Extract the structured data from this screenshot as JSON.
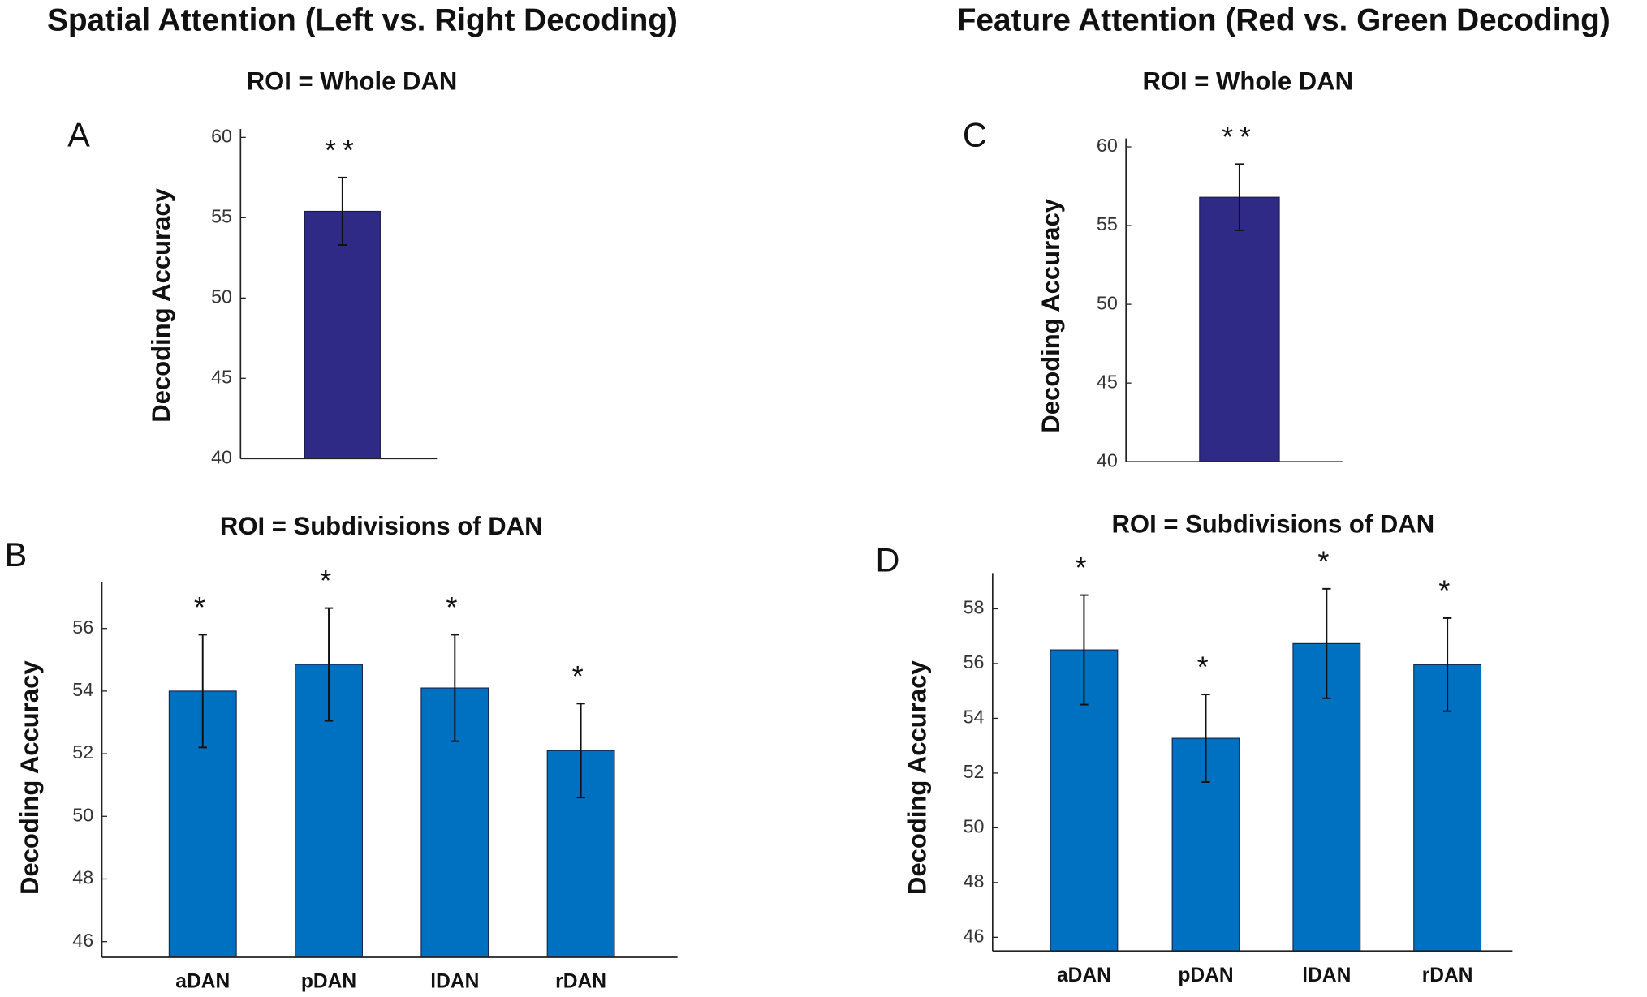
{
  "headings": [
    "Spatial Attention (Left vs. Right Decoding)",
    "Feature Attention (Red vs. Green Decoding)"
  ],
  "chart_data": [
    {
      "type": "bar",
      "panel_label": "A",
      "title": "ROI = Whole DAN",
      "y_label": "Decoding Accuracy",
      "categories": [
        null
      ],
      "values": [
        55.4
      ],
      "errors": [
        2.1
      ],
      "annotations": [
        "**"
      ],
      "color": "#2e2a86",
      "ylim": [
        40,
        60
      ],
      "yticks": [
        40,
        45,
        50,
        55,
        60
      ]
    },
    {
      "type": "bar",
      "panel_label": "B",
      "title": "ROI = Subdivisions of DAN",
      "y_label": "Decoding Accuracy",
      "categories": [
        "aDAN",
        "pDAN",
        "lDAN",
        "rDAN"
      ],
      "values": [
        54.0,
        54.85,
        54.1,
        52.1
      ],
      "errors": [
        1.8,
        1.8,
        1.7,
        1.5
      ],
      "annotations": [
        "*",
        "*",
        "*",
        "*"
      ],
      "color": "#0070c0",
      "ylim": [
        45.5,
        57.2
      ],
      "yticks": [
        46,
        48,
        50,
        52,
        54,
        56
      ]
    },
    {
      "type": "bar",
      "panel_label": "C",
      "title": "ROI = Whole DAN",
      "y_label": "Decoding Accuracy",
      "categories": [
        null
      ],
      "values": [
        56.8
      ],
      "errors": [
        2.1
      ],
      "annotations": [
        "**"
      ],
      "color": "#2e2a86",
      "ylim": [
        40,
        60
      ],
      "yticks": [
        40,
        45,
        50,
        55,
        60
      ]
    },
    {
      "type": "bar",
      "panel_label": "D",
      "title": "ROI = Subdivisions of DAN",
      "y_label": "Decoding Accuracy",
      "categories": [
        "aDAN",
        "pDAN",
        "lDAN",
        "rDAN"
      ],
      "values": [
        56.5,
        53.27,
        56.73,
        55.96
      ],
      "errors": [
        2.0,
        1.6,
        2.0,
        1.7
      ],
      "annotations": [
        "*",
        "*",
        "*",
        "*"
      ],
      "color": "#0070c0",
      "ylim": [
        45.5,
        59
      ],
      "yticks": [
        46,
        48,
        50,
        52,
        54,
        56,
        58
      ]
    }
  ]
}
